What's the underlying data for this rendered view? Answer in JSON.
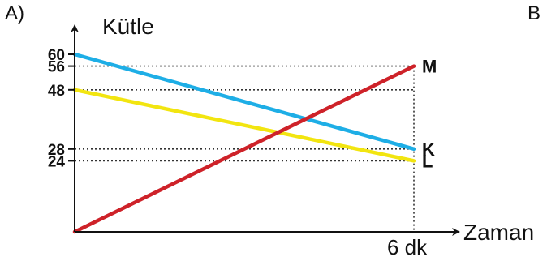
{
  "panels": {
    "left_label": "A)",
    "right_label": "B"
  },
  "chart_data": {
    "type": "line",
    "xlabel": "Zaman",
    "ylabel": "Kütle",
    "x": [
      0,
      6
    ],
    "x_tick_label": "6 dk",
    "ylim": [
      0,
      60
    ],
    "y_ticks": [
      {
        "value": 60,
        "label": "60"
      },
      {
        "value": 56,
        "label": "56"
      },
      {
        "value": 48,
        "label": "48"
      },
      {
        "value": 28,
        "label": "28"
      },
      {
        "value": 24,
        "label": "24"
      }
    ],
    "series": [
      {
        "name": "K",
        "values": [
          60,
          28
        ],
        "color": "#1EAEE6"
      },
      {
        "name": "L",
        "values": [
          48,
          24
        ],
        "color": "#F2E510"
      },
      {
        "name": "M",
        "values": [
          0,
          56
        ],
        "color": "#CE2229"
      }
    ],
    "guide_color": "#333333",
    "axis_color": "#111111"
  }
}
